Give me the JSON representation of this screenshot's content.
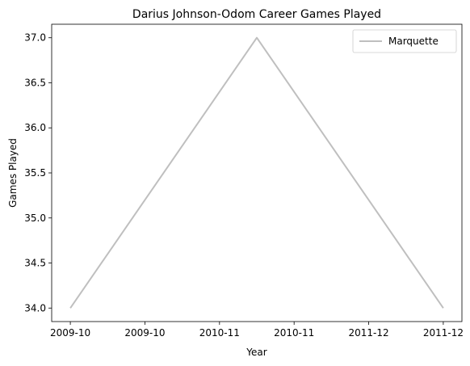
{
  "chart_data": {
    "type": "line",
    "title": "Darius Johnson-Odom Career Games Played",
    "xlabel": "Year",
    "ylabel": "Games Played",
    "categories": [
      "2009-10",
      "2010-11",
      "2011-12"
    ],
    "x_tick_labels": [
      "2009-10",
      "2009-10",
      "2010-11",
      "2010-11",
      "2011-12",
      "2011-12"
    ],
    "y_tick_labels": [
      "34.0",
      "34.5",
      "35.0",
      "35.5",
      "36.0",
      "36.5",
      "37.0"
    ],
    "ylim": [
      33.85,
      37.15
    ],
    "grid": false,
    "legend_position": "top-right",
    "series": [
      {
        "name": "Marquette",
        "values": [
          34,
          37,
          34
        ],
        "color": "#bfbfbf"
      }
    ]
  }
}
